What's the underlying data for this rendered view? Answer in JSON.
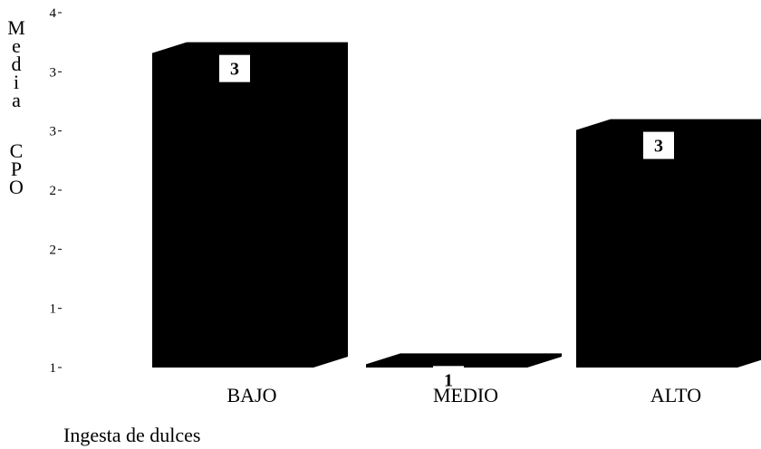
{
  "chart_data": {
    "type": "bar",
    "title": "",
    "xlabel": "Ingesta de dulces",
    "ylabel": "Media CPO",
    "categories": [
      "BAJO",
      "MEDIO",
      "ALTO"
    ],
    "values": [
      3.25,
      0.62,
      2.6
    ],
    "data_labels": [
      "3",
      "1",
      "3"
    ],
    "y_tick_values": [
      0.5,
      1.0,
      1.5,
      2.0,
      2.5,
      3.0,
      3.5
    ],
    "y_tick_labels": [
      "1",
      "1",
      "2",
      "2",
      "3",
      "3",
      "4"
    ],
    "ylim": [
      0.5,
      3.5
    ],
    "grid": false,
    "bar_color": "#000000",
    "background": "#ffffff",
    "three_d": true
  }
}
